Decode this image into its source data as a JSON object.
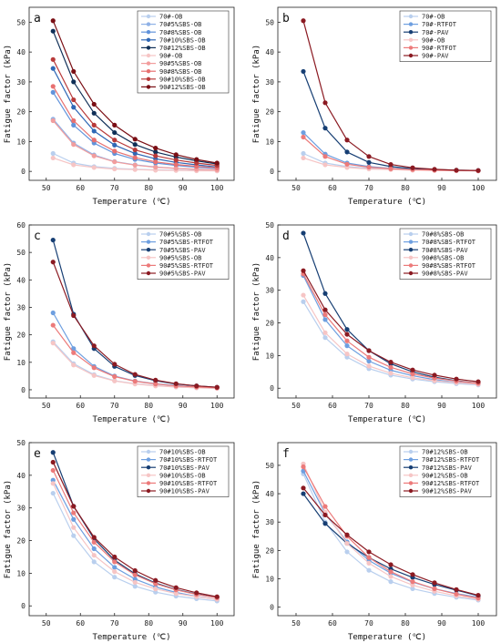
{
  "colors": {
    "c70_OB": "#b9cfee",
    "c70_5": "#8fb1e6",
    "c70_8": "#6193db",
    "c70_10": "#2f68b6",
    "c70_12": "#0f2f57",
    "c90_OB": "#f6c5c5",
    "c90_5": "#f29d9d",
    "c90_8": "#e77070",
    "c90_10": "#b83a3a",
    "c90_12": "#7a0e14",
    "c70_RTFOT": "#6e9fe0",
    "c70_PAV": "#163e73",
    "c90_RTFOT": "#ec7a7a",
    "c90_PAV": "#8b1a22"
  },
  "chart_data": [
    {
      "panel_label": "a",
      "type": "line",
      "xlabel": "Temperature (℃)",
      "ylabel": "Fatigue factor (kPa)",
      "xlim": [
        45,
        105
      ],
      "ylim": [
        -3,
        55
      ],
      "xticks": [
        50,
        60,
        70,
        80,
        90,
        100
      ],
      "yticks": [
        0,
        10,
        20,
        30,
        40,
        50
      ],
      "legend_position": "top-right",
      "x": [
        52,
        58,
        64,
        70,
        76,
        82,
        88,
        94,
        100
      ],
      "series": [
        {
          "name": "70#-OB",
          "color_key": "c70_OB",
          "values": [
            6.0,
            2.8,
            1.6,
            1.0,
            0.7,
            0.5,
            0.4,
            0.3,
            0.2
          ]
        },
        {
          "name": "70#5%SBS-OB",
          "color_key": "c70_5",
          "values": [
            17.5,
            9.5,
            5.5,
            3.3,
            2.2,
            1.5,
            1.0,
            0.7,
            0.5
          ]
        },
        {
          "name": "70#8%SBS-OB",
          "color_key": "c70_8",
          "values": [
            26.5,
            15.5,
            9.5,
            6.0,
            4.0,
            2.8,
            2.0,
            1.4,
            1.0
          ]
        },
        {
          "name": "70#10%SBS-OB",
          "color_key": "c70_10",
          "values": [
            34.5,
            21.5,
            13.5,
            8.8,
            6.0,
            4.2,
            3.0,
            2.2,
            1.5
          ]
        },
        {
          "name": "70#12%SBS-OB",
          "color_key": "c70_12",
          "values": [
            47.0,
            30.0,
            19.5,
            13.0,
            9.0,
            6.5,
            4.8,
            3.5,
            2.5
          ]
        },
        {
          "name": "90#-OB",
          "color_key": "c90_OB",
          "values": [
            4.5,
            2.2,
            1.3,
            0.8,
            0.6,
            0.4,
            0.3,
            0.2,
            0.15
          ]
        },
        {
          "name": "90#5%SBS-OB",
          "color_key": "c90_5",
          "values": [
            17.0,
            9.0,
            5.2,
            3.2,
            2.1,
            1.4,
            1.0,
            0.7,
            0.5
          ]
        },
        {
          "name": "90#8%SBS-OB",
          "color_key": "c90_8",
          "values": [
            28.5,
            17.0,
            10.5,
            6.8,
            4.6,
            3.2,
            2.3,
            1.7,
            1.2
          ]
        },
        {
          "name": "90#10%SBS-OB",
          "color_key": "c90_10",
          "values": [
            37.5,
            24.0,
            15.5,
            10.5,
            7.2,
            5.2,
            3.8,
            2.8,
            2.0
          ]
        },
        {
          "name": "90#12%SBS-OB",
          "color_key": "c90_12",
          "values": [
            50.5,
            33.5,
            22.5,
            15.5,
            10.8,
            7.8,
            5.6,
            4.0,
            2.8
          ]
        }
      ]
    },
    {
      "panel_label": "b",
      "type": "line",
      "xlabel": "Temperature (℃)",
      "ylabel": "Fatigue factor (kPa)",
      "xlim": [
        45,
        105
      ],
      "ylim": [
        -3,
        55
      ],
      "xticks": [
        50,
        60,
        70,
        80,
        90,
        100
      ],
      "yticks": [
        0,
        10,
        20,
        30,
        40,
        50
      ],
      "legend_position": "top-right",
      "x": [
        52,
        58,
        64,
        70,
        76,
        82,
        88,
        94,
        100
      ],
      "series": [
        {
          "name": "70#-OB",
          "color_key": "c70_OB",
          "values": [
            6.0,
            2.8,
            1.6,
            1.0,
            0.7,
            0.5,
            0.4,
            0.3,
            0.2
          ]
        },
        {
          "name": "70#-RTFOT",
          "color_key": "c70_RTFOT",
          "values": [
            13.0,
            5.8,
            2.8,
            1.6,
            1.0,
            0.7,
            0.5,
            0.3,
            0.2
          ]
        },
        {
          "name": "70#-PAV",
          "color_key": "c70_PAV",
          "values": [
            33.5,
            14.5,
            6.5,
            3.0,
            1.6,
            0.9,
            0.6,
            0.4,
            0.3
          ]
        },
        {
          "name": "90#-OB",
          "color_key": "c90_OB",
          "values": [
            4.5,
            2.2,
            1.3,
            0.8,
            0.6,
            0.4,
            0.3,
            0.2,
            0.15
          ]
        },
        {
          "name": "90#-RTFOT",
          "color_key": "c90_RTFOT",
          "values": [
            11.5,
            5.0,
            2.4,
            1.4,
            0.9,
            0.6,
            0.4,
            0.3,
            0.2
          ]
        },
        {
          "name": "90#-PAV",
          "color_key": "c90_PAV",
          "values": [
            50.5,
            23.0,
            10.5,
            5.0,
            2.3,
            1.2,
            0.7,
            0.4,
            0.3
          ]
        }
      ]
    },
    {
      "panel_label": "c",
      "type": "line",
      "xlabel": "Temperature (℃)",
      "ylabel": "Fatigue factor (kPa)",
      "xlim": [
        45,
        105
      ],
      "ylim": [
        -3,
        60
      ],
      "xticks": [
        50,
        60,
        70,
        80,
        90,
        100
      ],
      "yticks": [
        0,
        10,
        20,
        30,
        40,
        50,
        60
      ],
      "legend_position": "top-right",
      "x": [
        52,
        58,
        64,
        70,
        76,
        82,
        88,
        94,
        100
      ],
      "series": [
        {
          "name": "70#5%SBS-OB",
          "color_key": "c70_OB",
          "values": [
            17.5,
            9.5,
            5.5,
            3.3,
            2.2,
            1.5,
            1.0,
            0.7,
            0.5
          ]
        },
        {
          "name": "70#5%SBS-RTFOT",
          "color_key": "c70_RTFOT",
          "values": [
            28.0,
            15.0,
            8.5,
            5.0,
            3.2,
            2.2,
            1.5,
            1.0,
            0.7
          ]
        },
        {
          "name": "70#5%SBS-PAV",
          "color_key": "c70_PAV",
          "values": [
            54.5,
            27.5,
            15.0,
            8.5,
            5.2,
            3.3,
            2.1,
            1.4,
            0.9
          ]
        },
        {
          "name": "90#5%SBS-OB",
          "color_key": "c90_OB",
          "values": [
            17.0,
            9.0,
            5.2,
            3.2,
            2.1,
            1.4,
            1.0,
            0.7,
            0.5
          ]
        },
        {
          "name": "90#5%SBS-RTFOT",
          "color_key": "c90_RTFOT",
          "values": [
            23.5,
            13.5,
            8.0,
            4.8,
            3.1,
            2.1,
            1.4,
            1.0,
            0.7
          ]
        },
        {
          "name": "90#5%SBS-PAV",
          "color_key": "c90_PAV",
          "values": [
            46.5,
            27.0,
            16.0,
            9.3,
            5.6,
            3.5,
            2.2,
            1.4,
            0.9
          ]
        }
      ]
    },
    {
      "panel_label": "d",
      "type": "line",
      "xlabel": "Temperature (℃)",
      "ylabel": "Fatigue factor (kPa)",
      "xlim": [
        45,
        105
      ],
      "ylim": [
        -3,
        50
      ],
      "xticks": [
        50,
        60,
        70,
        80,
        90,
        100
      ],
      "yticks": [
        0,
        10,
        20,
        30,
        40,
        50
      ],
      "legend_position": "top-right",
      "x": [
        52,
        58,
        64,
        70,
        76,
        82,
        88,
        94,
        100
      ],
      "series": [
        {
          "name": "70#8%SBS-OB",
          "color_key": "c70_OB",
          "values": [
            26.5,
            15.5,
            9.5,
            6.0,
            4.0,
            2.8,
            2.0,
            1.4,
            1.0
          ]
        },
        {
          "name": "70#8%SBS-RTFOT",
          "color_key": "c70_RTFOT",
          "values": [
            34.5,
            21.0,
            13.0,
            8.3,
            5.5,
            3.8,
            2.6,
            1.8,
            1.3
          ]
        },
        {
          "name": "70#8%SBS-PAV",
          "color_key": "c70_PAV",
          "values": [
            47.5,
            29.0,
            18.0,
            11.5,
            7.5,
            5.0,
            3.4,
            2.3,
            1.5
          ]
        },
        {
          "name": "90#8%SBS-OB",
          "color_key": "c90_OB",
          "values": [
            28.5,
            17.0,
            10.5,
            6.8,
            4.6,
            3.2,
            2.3,
            1.7,
            1.2
          ]
        },
        {
          "name": "90#8%SBS-RTFOT",
          "color_key": "c90_RTFOT",
          "values": [
            35.0,
            22.5,
            14.5,
            9.5,
            6.4,
            4.4,
            3.1,
            2.2,
            1.5
          ]
        },
        {
          "name": "90#8%SBS-PAV",
          "color_key": "c90_PAV",
          "values": [
            36.0,
            24.0,
            16.5,
            11.5,
            8.0,
            5.6,
            4.0,
            2.8,
            2.0
          ]
        }
      ]
    },
    {
      "panel_label": "e",
      "type": "line",
      "xlabel": "Temperature (℃)",
      "ylabel": "Fatigue factor (kPa)",
      "xlim": [
        45,
        105
      ],
      "ylim": [
        -3,
        50
      ],
      "xticks": [
        50,
        60,
        70,
        80,
        90,
        100
      ],
      "yticks": [
        0,
        10,
        20,
        30,
        40,
        50
      ],
      "legend_position": "top-right",
      "x": [
        52,
        58,
        64,
        70,
        76,
        82,
        88,
        94,
        100
      ],
      "series": [
        {
          "name": "70#10%SBS-OB",
          "color_key": "c70_OB",
          "values": [
            34.5,
            21.5,
            13.5,
            8.8,
            6.0,
            4.2,
            3.0,
            2.2,
            1.5
          ]
        },
        {
          "name": "70#10%SBS-RTFOT",
          "color_key": "c70_RTFOT",
          "values": [
            38.5,
            26.5,
            17.5,
            11.8,
            8.2,
            5.8,
            4.1,
            2.9,
            2.0
          ]
        },
        {
          "name": "70#10%SBS-PAV",
          "color_key": "c70_PAV",
          "values": [
            47.0,
            30.5,
            20.5,
            14.0,
            9.8,
            7.0,
            5.0,
            3.6,
            2.6
          ]
        },
        {
          "name": "90#10%SBS-OB",
          "color_key": "c90_OB",
          "values": [
            37.5,
            24.0,
            15.5,
            10.5,
            7.2,
            5.2,
            3.8,
            2.8,
            2.0
          ]
        },
        {
          "name": "90#10%SBS-RTFOT",
          "color_key": "c90_RTFOT",
          "values": [
            41.5,
            28.5,
            19.5,
            13.5,
            9.5,
            6.8,
            4.9,
            3.5,
            2.5
          ]
        },
        {
          "name": "90#10%SBS-PAV",
          "color_key": "c90_PAV",
          "values": [
            44.0,
            30.5,
            21.0,
            15.0,
            10.8,
            7.8,
            5.6,
            4.0,
            2.8
          ]
        }
      ]
    },
    {
      "panel_label": "f",
      "type": "line",
      "xlabel": "Temperature (℃)",
      "ylabel": "Fatigue factor (kPa)",
      "xlim": [
        45,
        105
      ],
      "ylim": [
        -3,
        58
      ],
      "xticks": [
        50,
        60,
        70,
        80,
        90,
        100
      ],
      "yticks": [
        0,
        10,
        20,
        30,
        40,
        50
      ],
      "legend_position": "top-right",
      "x": [
        52,
        58,
        64,
        70,
        76,
        82,
        88,
        94,
        100
      ],
      "series": [
        {
          "name": "70#12%SBS-OB",
          "color_key": "c70_OB",
          "values": [
            47.0,
            30.0,
            19.5,
            13.0,
            9.0,
            6.5,
            4.8,
            3.5,
            2.5
          ]
        },
        {
          "name": "70#12%SBS-RTFOT",
          "color_key": "c70_RTFOT",
          "values": [
            48.0,
            33.0,
            23.0,
            16.5,
            12.0,
            8.8,
            6.5,
            4.8,
            3.5
          ]
        },
        {
          "name": "70#12%SBS-PAV",
          "color_key": "c70_PAV",
          "values": [
            40.0,
            29.5,
            22.5,
            17.5,
            13.5,
            10.5,
            8.0,
            6.0,
            4.0
          ]
        },
        {
          "name": "90#12%SBS-OB",
          "color_key": "c90_OB",
          "values": [
            50.5,
            33.5,
            22.5,
            15.5,
            10.8,
            7.8,
            5.6,
            4.0,
            2.8
          ]
        },
        {
          "name": "90#12%SBS-RTFOT",
          "color_key": "c90_RTFOT",
          "values": [
            49.5,
            35.5,
            25.0,
            17.5,
            12.5,
            9.0,
            6.5,
            4.6,
            3.2
          ]
        },
        {
          "name": "90#12%SBS-PAV",
          "color_key": "c90_PAV",
          "values": [
            42.0,
            32.5,
            25.5,
            19.5,
            15.0,
            11.5,
            8.6,
            6.2,
            4.2
          ]
        }
      ]
    }
  ]
}
